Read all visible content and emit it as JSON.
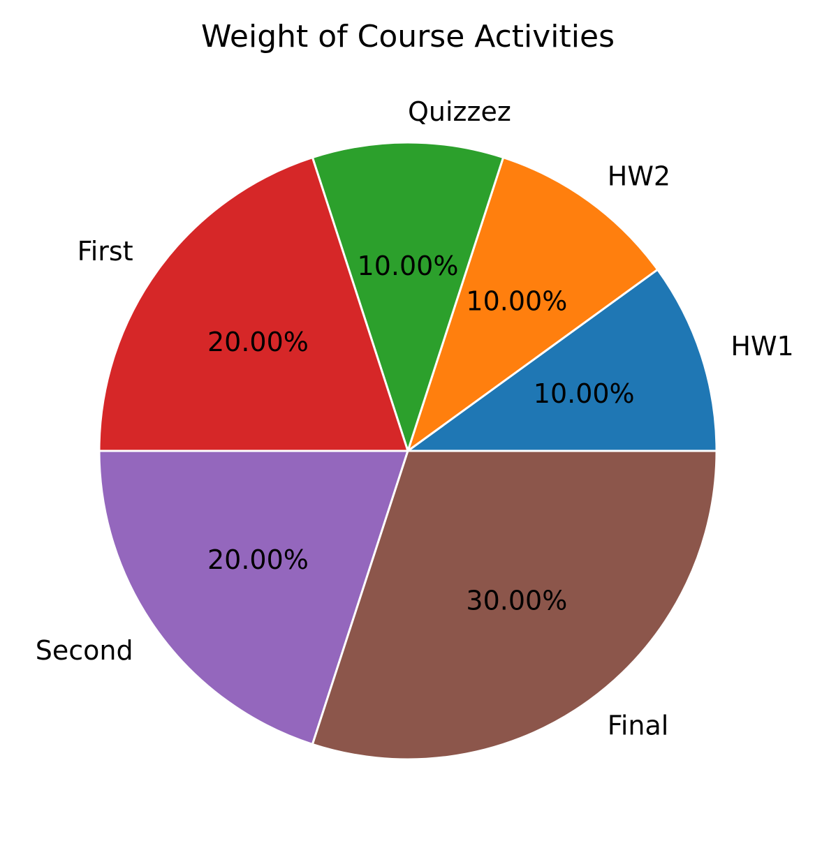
{
  "chart_data": {
    "type": "pie",
    "title": "Weight of Course Activities",
    "categories": [
      "HW1",
      "HW2",
      "Quizzez",
      "First",
      "Second",
      "Final"
    ],
    "values": [
      10,
      10,
      10,
      20,
      20,
      30
    ],
    "percent_labels": [
      "10.00%",
      "10.00%",
      "10.00%",
      "20.00%",
      "20.00%",
      "30.00%"
    ],
    "colors": [
      "#1f77b4",
      "#ff7f0e",
      "#2ca02c",
      "#d62728",
      "#9467bd",
      "#8c564b"
    ],
    "start_angle_deg": 0,
    "direction": "counterclockwise",
    "slice_edge_color": "#ffffff"
  }
}
